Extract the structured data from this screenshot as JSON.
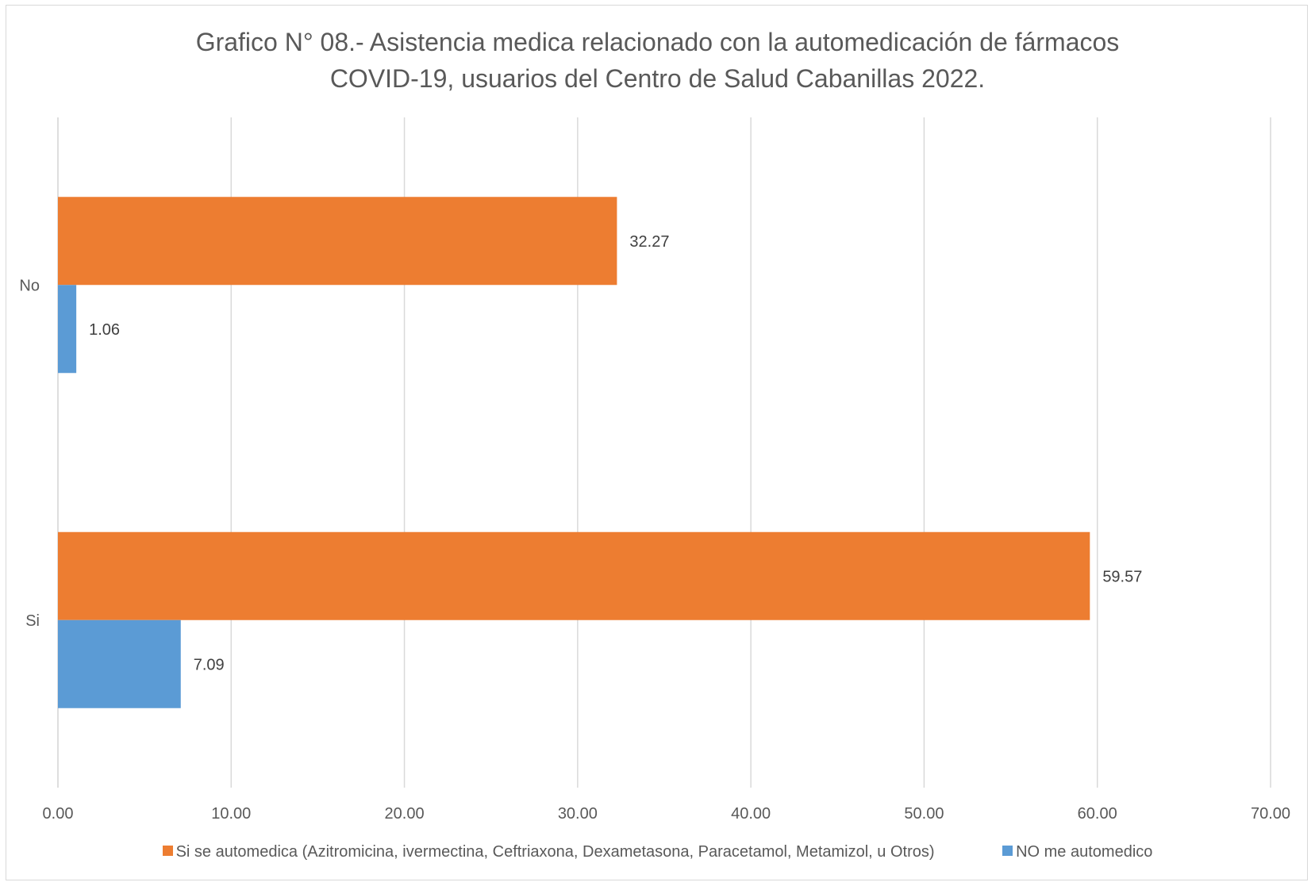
{
  "chart_data": {
    "type": "bar",
    "orientation": "horizontal",
    "title_lines": [
      "Grafico N° 08.- Asistencia medica relacionado con la automedicación de fármacos",
      "COVID-19, usuarios del Centro de Salud Cabanillas 2022."
    ],
    "categories": [
      "No",
      "Si"
    ],
    "series": [
      {
        "name": "Si se automedica (Azitromicina, ivermectina, Ceftriaxona, Dexametasona, Paracetamol, Metamizol, u Otros)",
        "color": "#ED7D31",
        "values": [
          32.27,
          59.57
        ],
        "labels": [
          "32.27",
          "59.57"
        ]
      },
      {
        "name": "NO me automedico",
        "color": "#5B9BD5",
        "values": [
          1.06,
          7.09
        ],
        "labels": [
          "1.06",
          "7.09"
        ]
      }
    ],
    "xlim": [
      0,
      70
    ],
    "x_ticks": [
      0,
      10,
      20,
      30,
      40,
      50,
      60,
      70
    ],
    "x_tick_labels": [
      "0.00",
      "10.00",
      "20.00",
      "30.00",
      "40.00",
      "50.00",
      "60.00",
      "70.00"
    ],
    "grid": true,
    "legend_position": "bottom"
  }
}
